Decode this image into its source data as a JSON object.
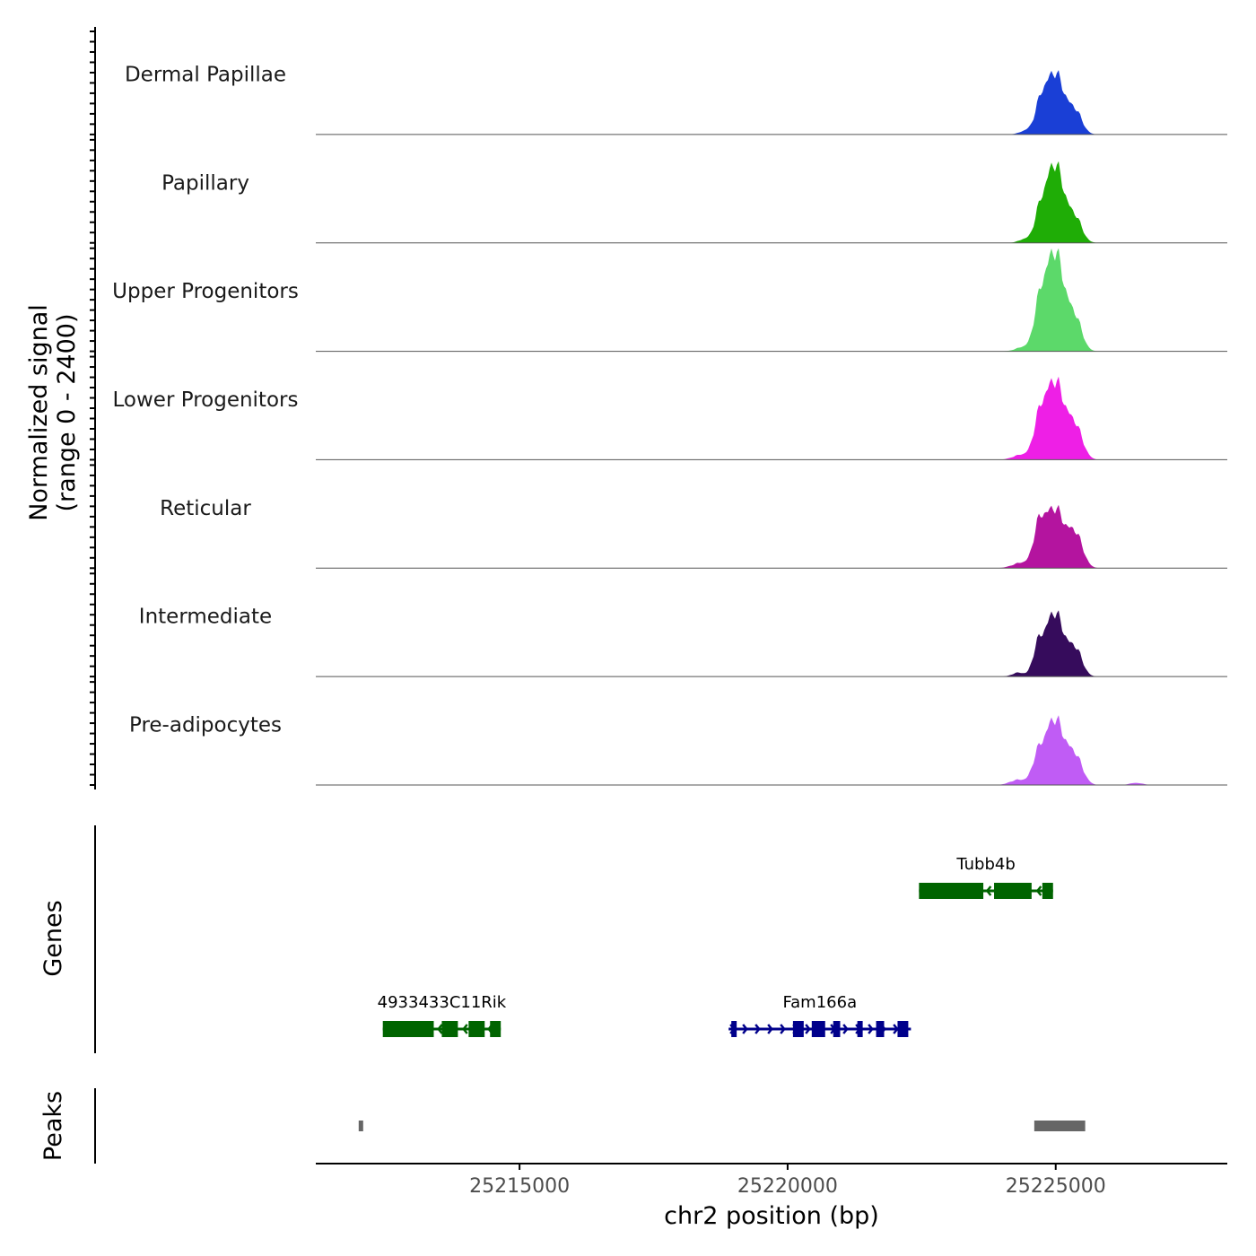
{
  "chart_data": {
    "type": "area",
    "title": "",
    "ylabel_line1": "Normalized signal",
    "ylabel_line2": "(range 0 - 2400)",
    "signal_range": [
      0,
      2400
    ],
    "xlabel": "chr2 position (bp)",
    "xlim": [
      25211200,
      25228200
    ],
    "x_ticks": [
      {
        "value": 25215000,
        "label": "25215000"
      },
      {
        "value": 25220000,
        "label": "25220000"
      },
      {
        "value": 25225000,
        "label": "25225000"
      }
    ],
    "tracks": [
      {
        "name": "Dermal Papillae",
        "color": "#1a3fd6",
        "peaks": [
          {
            "c": 24975,
            "h": 1450,
            "w": 190
          },
          {
            "c": 24700,
            "h": 380,
            "w": 90
          },
          {
            "c": 25380,
            "h": 450,
            "w": 120
          },
          {
            "c": 24450,
            "h": 80,
            "w": 120
          }
        ]
      },
      {
        "name": "Papillary",
        "color": "#1fad06",
        "peaks": [
          {
            "c": 24975,
            "h": 1850,
            "w": 185
          },
          {
            "c": 24680,
            "h": 360,
            "w": 85
          },
          {
            "c": 25380,
            "h": 480,
            "w": 120
          },
          {
            "c": 24420,
            "h": 80,
            "w": 110
          }
        ]
      },
      {
        "name": "Upper Progenitors",
        "color": "#5cd96a",
        "peaks": [
          {
            "c": 24975,
            "h": 2350,
            "w": 190
          },
          {
            "c": 24680,
            "h": 620,
            "w": 95
          },
          {
            "c": 25380,
            "h": 620,
            "w": 120
          },
          {
            "c": 24380,
            "h": 90,
            "w": 130
          }
        ]
      },
      {
        "name": "Lower Progenitors",
        "color": "#ee1fe6",
        "peaks": [
          {
            "c": 24975,
            "h": 1850,
            "w": 195
          },
          {
            "c": 24680,
            "h": 560,
            "w": 100
          },
          {
            "c": 25380,
            "h": 650,
            "w": 130
          },
          {
            "c": 24350,
            "h": 110,
            "w": 150
          }
        ]
      },
      {
        "name": "Reticular",
        "color": "#b4149f",
        "peaks": [
          {
            "c": 24975,
            "h": 1400,
            "w": 195
          },
          {
            "c": 24680,
            "h": 700,
            "w": 100
          },
          {
            "c": 25380,
            "h": 700,
            "w": 130
          },
          {
            "c": 24350,
            "h": 120,
            "w": 160
          }
        ]
      },
      {
        "name": "Intermediate",
        "color": "#360c5c",
        "peaks": [
          {
            "c": 24975,
            "h": 1500,
            "w": 185
          },
          {
            "c": 24660,
            "h": 500,
            "w": 90
          },
          {
            "c": 25380,
            "h": 560,
            "w": 120
          },
          {
            "c": 24300,
            "h": 90,
            "w": 110
          }
        ]
      },
      {
        "name": "Pre-adipocytes",
        "color": "#c05cf5",
        "peaks": [
          {
            "c": 24975,
            "h": 1550,
            "w": 195
          },
          {
            "c": 24650,
            "h": 420,
            "w": 95
          },
          {
            "c": 25380,
            "h": 560,
            "w": 130
          },
          {
            "c": 24300,
            "h": 120,
            "w": 150
          },
          {
            "c": 26500,
            "h": 50,
            "w": 120
          }
        ]
      }
    ],
    "genes_label": "Genes",
    "genes": [
      {
        "name": "Tubb4b",
        "strand": "-",
        "color": "#006400",
        "row": 0,
        "start": 25222450,
        "end": 25224950,
        "exons": [
          [
            25222450,
            25223650
          ],
          [
            25223850,
            25224550
          ],
          [
            25224750,
            25224950
          ]
        ]
      },
      {
        "name": "4933433C11Rik",
        "strand": "-",
        "color": "#006400",
        "row": 1,
        "start": 25212450,
        "end": 25214650,
        "exons": [
          [
            25212450,
            25213400
          ],
          [
            25213550,
            25213850
          ],
          [
            25214050,
            25214350
          ],
          [
            25214450,
            25214650
          ]
        ]
      },
      {
        "name": "Fam166a",
        "strand": "+",
        "color": "#00008b",
        "row": 1,
        "start": 25218900,
        "end": 25222300,
        "exons": [
          [
            25218950,
            25219050
          ],
          [
            25220100,
            25220300
          ],
          [
            25220450,
            25220700
          ],
          [
            25220850,
            25220980
          ],
          [
            25221300,
            25221400
          ],
          [
            25221650,
            25221800
          ],
          [
            25222050,
            25222250
          ]
        ]
      }
    ],
    "peaks_label": "Peaks",
    "peak_regions": [
      [
        25212000,
        25212070
      ],
      [
        25224600,
        25225550
      ]
    ],
    "peak_color": "#666666"
  }
}
